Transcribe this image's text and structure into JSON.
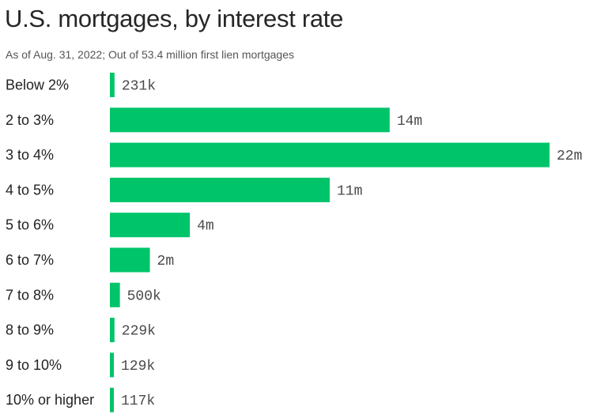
{
  "chart_data": {
    "type": "bar",
    "orientation": "horizontal",
    "title": "U.S. mortgages, by interest rate",
    "subtitle": "As of Aug. 31, 2022; Out of 53.4 million first lien mortgages",
    "categories": [
      "Below 2%",
      "2 to 3%",
      "3 to 4%",
      "4 to 5%",
      "5 to 6%",
      "6 to 7%",
      "7 to 8%",
      "8 to 9%",
      "9 to 10%",
      "10% or higher"
    ],
    "values": [
      231000,
      14000000,
      22000000,
      11000000,
      4000000,
      2000000,
      500000,
      229000,
      129000,
      117000
    ],
    "value_labels": [
      "231k",
      "14m",
      "22m",
      "11m",
      "4m",
      "2m",
      "500k",
      "229k",
      "129k",
      "117k"
    ],
    "xlim": [
      0,
      22000000
    ],
    "grid": false,
    "legend": "none",
    "bar_color": "#00c46a"
  }
}
